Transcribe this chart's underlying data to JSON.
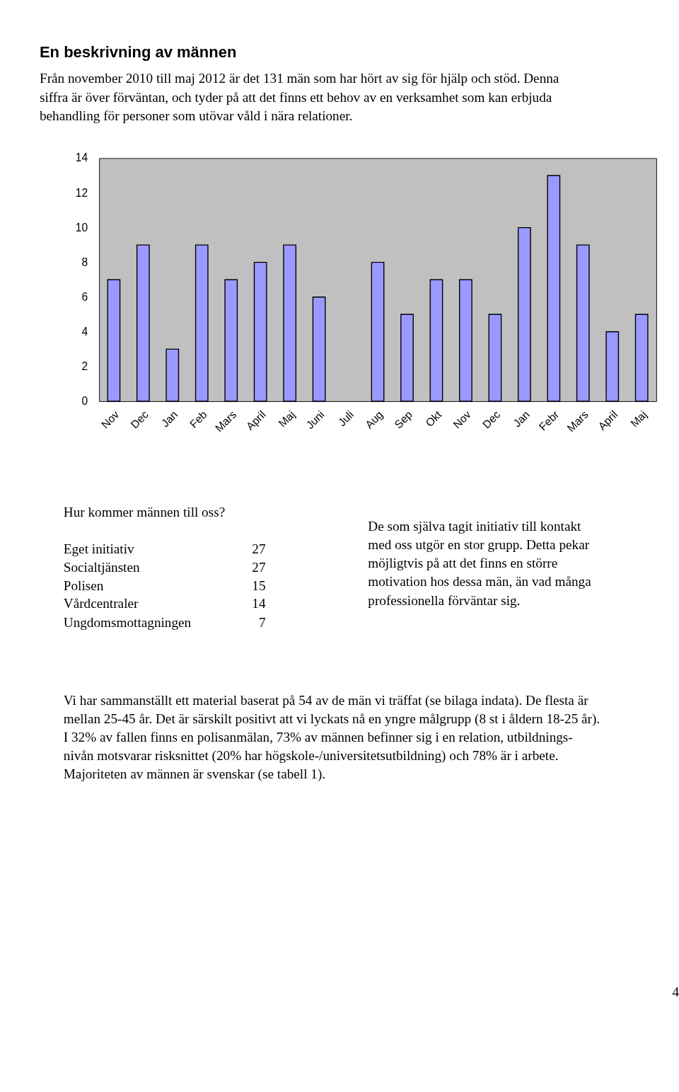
{
  "chart_data": {
    "type": "bar",
    "title": "En beskrivning av männen",
    "subtitle": "Från november 2010 till maj 2012 är det 131 män som har hört av sig för hjälp och stöd. Denna\nsiffra är över förväntan, och tyder på att det finns ett behov av en verksamhet som kan erbjuda\nbehandling för personer som utövar våld i nära relationer.",
    "categories": [
      "Nov",
      "Dec",
      "Jan",
      "Feb",
      "Mars",
      "April",
      "Maj",
      "Juni",
      "Juli",
      "Aug",
      "Sep",
      "Okt",
      "Nov",
      "Dec",
      "Jan",
      "Febr",
      "Mars",
      "April",
      "Maj"
    ],
    "values": [
      7,
      9,
      3,
      9,
      7,
      8,
      9,
      6,
      null,
      8,
      5,
      7,
      7,
      5,
      10,
      13,
      9,
      4,
      5
    ],
    "color": "#9999ff",
    "ylim": [
      0,
      14
    ],
    "yticks": [
      0,
      2,
      4,
      6,
      8,
      10,
      12,
      14
    ],
    "grid": false,
    "annotations": [
      "Hur kommer männen till oss?",
      "Eget initiativ 27",
      "Socialtjänsten 27",
      "Polisen 15",
      "Vårdcentraler 14",
      "Ungdomsmottagningen 7",
      "De som själva tagit initiativ till kontakt\nmed oss utgör en stor grupp. Detta pekar\nmöjligtvis på att det finns en större\nmotivation hos dessa män, än vad många\nprofessionella förväntar sig.",
      "Vi har sammanställt ett material baserat på 54 av de män vi träffat (se bilaga indata). De flesta är\nmellan 25-45 år. Det är särskilt positivt att vi lyckats nå en yngre målgrupp (8 st i åldern 18-25 år).\nI 32% av fallen finns en polisanmälan, 73% av männen befinner sig i en relation,  utbildnings-\nnivån motsvarar risksnittet (20% har högskole-/universitetsutbildning) och 78% är i arbete.\nMajoriteten av männen är svenskar (se tabell 1).",
      "4"
    ]
  }
}
